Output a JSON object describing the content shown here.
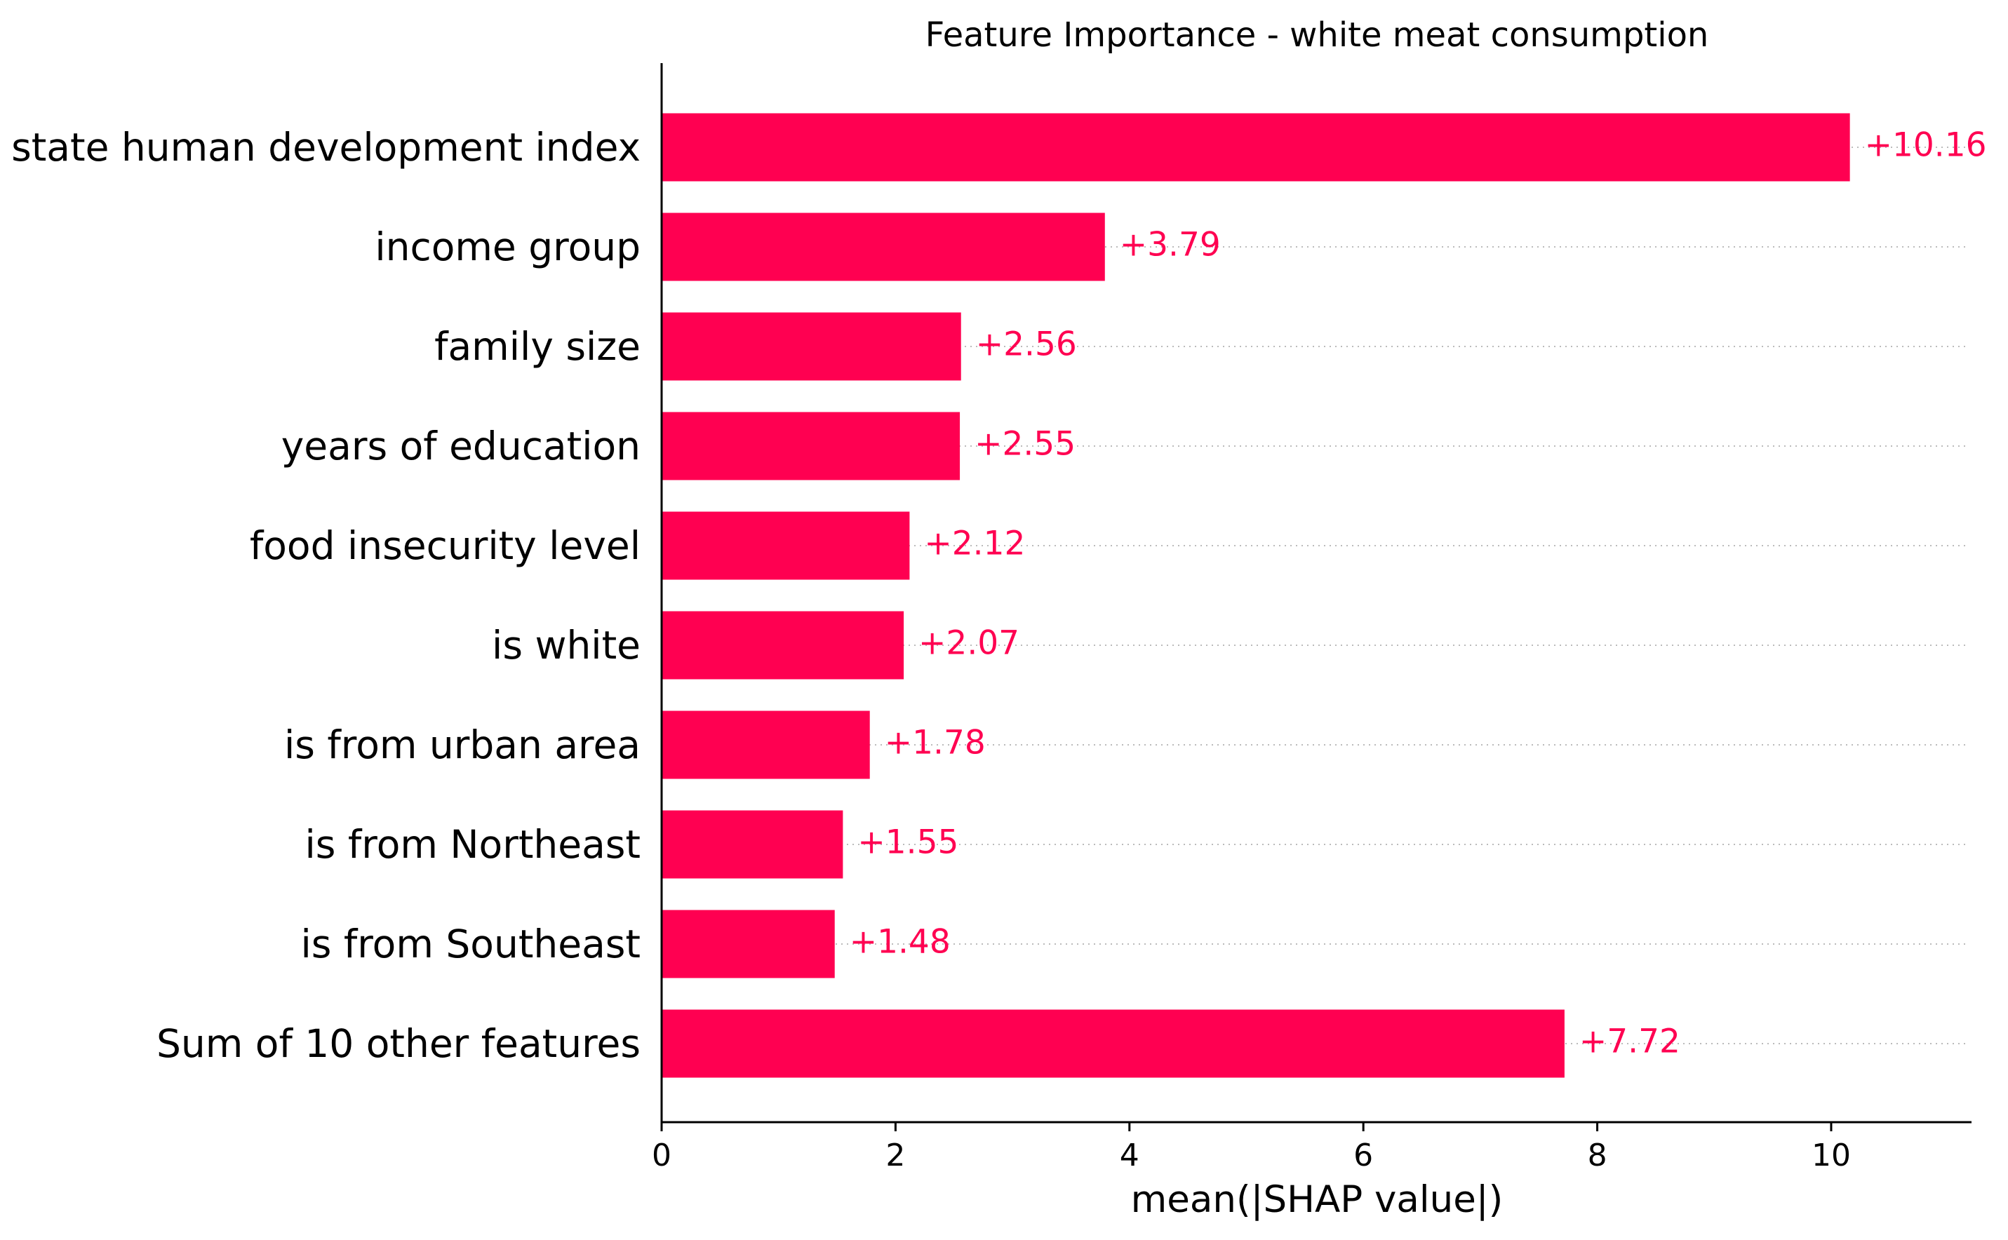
{
  "chart_data": {
    "type": "bar",
    "orientation": "horizontal",
    "title": "Feature Importance - white meat consumption",
    "xlabel": "mean(|SHAP value|)",
    "ylabel": "",
    "xlim": [
      0,
      11.2
    ],
    "xticks": [
      0,
      2,
      4,
      6,
      8,
      10
    ],
    "categories": [
      "state human development index",
      "income group",
      "family size",
      "years of education",
      "food insecurity level",
      "is white",
      "is from urban area",
      "is from Northeast",
      "is from Southeast",
      "Sum of 10 other features"
    ],
    "values": [
      10.16,
      3.79,
      2.56,
      2.55,
      2.12,
      2.07,
      1.78,
      1.55,
      1.48,
      7.72
    ],
    "value_labels": [
      "+10.16",
      "+3.79",
      "+2.56",
      "+2.55",
      "+2.12",
      "+2.07",
      "+1.78",
      "+1.55",
      "+1.48",
      "+7.72"
    ],
    "bar_color": "#ff0051",
    "grid": false,
    "legend": "none"
  }
}
